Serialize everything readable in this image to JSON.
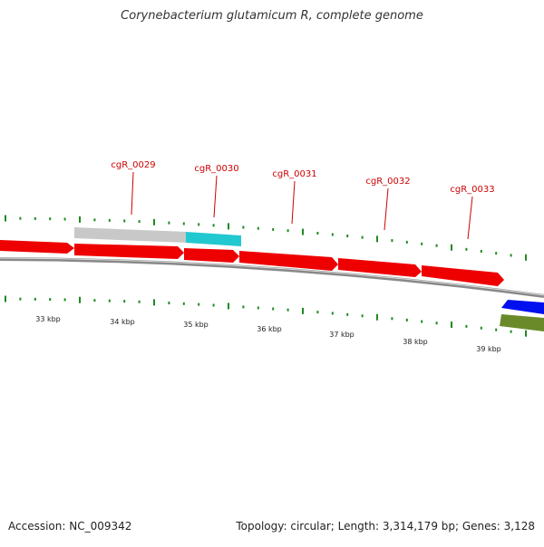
{
  "title": "Corynebacterium glutamicum R, complete genome",
  "footer": {
    "accession": "Accession: NC_009342",
    "summary": "Topology: circular; Length: 3,314,179 bp; Genes: 3,128"
  },
  "colors": {
    "forward_gene": "#ee0000",
    "forward_gene_dark": "#aa0000",
    "gray_feature": "#c8c8c8",
    "cyan_feature": "#22c8d0",
    "reverse_gene": "#0010ee",
    "olive_feature": "#6a8a2a",
    "backbone": "#888888",
    "tick": "#1f8a1f",
    "gene_label": "#cc0000",
    "scale_label": "#222222"
  },
  "gene_labels": [
    {
      "text": "cgR_0029"
    },
    {
      "text": "cgR_0030"
    },
    {
      "text": "cgR_0031"
    },
    {
      "text": "cgR_0032"
    },
    {
      "text": "cgR_0033"
    }
  ],
  "scale_labels": [
    "33 kbp",
    "34 kbp",
    "35 kbp",
    "36 kbp",
    "37 kbp",
    "38 kbp",
    "39 kbp"
  ]
}
